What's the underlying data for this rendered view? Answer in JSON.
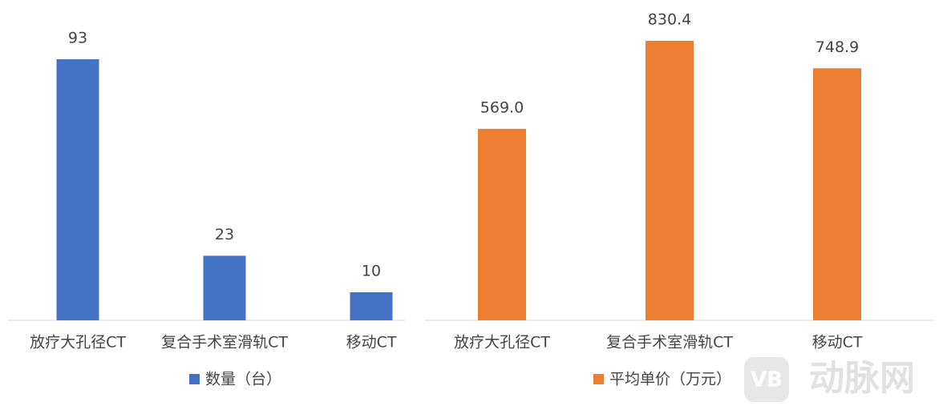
{
  "chart_data": [
    {
      "type": "bar",
      "categories": [
        "放疗大孔径CT",
        "复合手术室滑轨CT",
        "移动CT"
      ],
      "series": [
        {
          "name": "数量（台）",
          "color": "#4472c4",
          "values": [
            93,
            23,
            10
          ]
        }
      ]
    },
    {
      "type": "bar",
      "categories": [
        "放疗大孔径CT",
        "复合手术室滑轨CT",
        "移动CT"
      ],
      "series": [
        {
          "name": "平均单价（万元）",
          "color": "#ed7d31",
          "values": [
            569.0,
            830.4,
            748.9
          ],
          "value_labels": [
            "569.0",
            "830.4",
            "748.9"
          ]
        }
      ]
    }
  ],
  "watermark": {
    "logo": "VB",
    "text": "动脉网"
  }
}
